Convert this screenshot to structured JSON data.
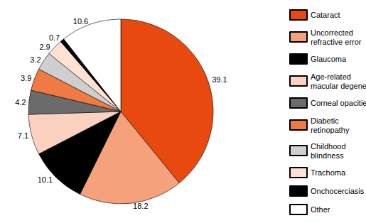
{
  "chart_data": {
    "type": "pie",
    "categories": [
      "Cataract",
      "Uncorrected refractive error",
      "Glaucoma",
      "Age-related macular degeneration",
      "Corneal opacities",
      "Diabetic retinopathy",
      "Childhood blindness",
      "Trachoma",
      "Onchocerciasis",
      "Other"
    ],
    "values": [
      39.1,
      18.2,
      10.1,
      7.1,
      4.2,
      3.9,
      3.2,
      2.9,
      0.7,
      10.6
    ],
    "colors": [
      "#e8490f",
      "#f5a27c",
      "#000000",
      "#fbd2bf",
      "#6b6b6b",
      "#f07a43",
      "#cfcfcf",
      "#fde2d4",
      "#000000",
      "#ffffff"
    ],
    "data_labels": true,
    "legend": "right"
  }
}
